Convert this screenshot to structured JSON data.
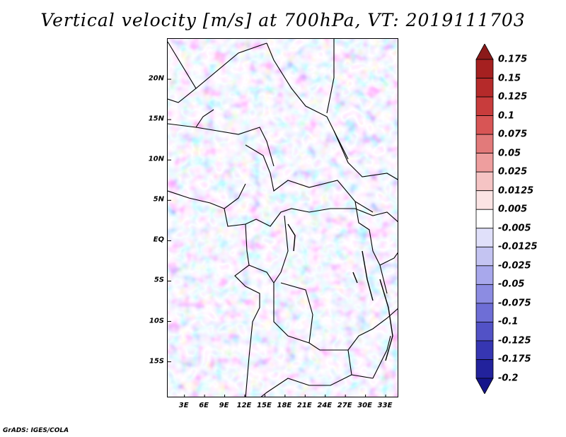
{
  "title": "Vertical velocity [m/s] at 700hPa, VT: 2019111703",
  "credit": "GrADS: IGES/COLA",
  "map": {
    "lat_ticks": [
      "20N",
      "15N",
      "10N",
      "5N",
      "EQ",
      "5S",
      "10S",
      "15S"
    ],
    "lon_ticks": [
      "3E",
      "6E",
      "9E",
      "12E",
      "15E",
      "18E",
      "21E",
      "24E",
      "27E",
      "30E",
      "33E"
    ],
    "lat_values": [
      20,
      15,
      10,
      5,
      0,
      -5,
      -10,
      -15
    ],
    "lon_values": [
      3,
      6,
      9,
      12,
      15,
      18,
      21,
      24,
      27,
      30,
      33
    ],
    "lon_range": [
      0.5,
      35
    ],
    "lat_range": [
      -19.5,
      25
    ]
  },
  "colorbar": {
    "labels": [
      "0.175",
      "0.15",
      "0.125",
      "0.1",
      "0.075",
      "0.05",
      "0.025",
      "0.0125",
      "0.005",
      "-0.005",
      "-0.0125",
      "-0.025",
      "-0.05",
      "-0.075",
      "-0.1",
      "-0.125",
      "-0.175",
      "-0.2"
    ],
    "colors": [
      "#8b1a1a",
      "#a52020",
      "#b52a2a",
      "#c83c3c",
      "#d85555",
      "#e27a7a",
      "#ee9e9e",
      "#f5c4c4",
      "#fbe4e4",
      "#ffffff",
      "#e0e0fa",
      "#c4c4f2",
      "#a8a8ec",
      "#8c8ce2",
      "#6e6ed6",
      "#5252c6",
      "#3636b2",
      "#22229c",
      "#14148a"
    ]
  }
}
